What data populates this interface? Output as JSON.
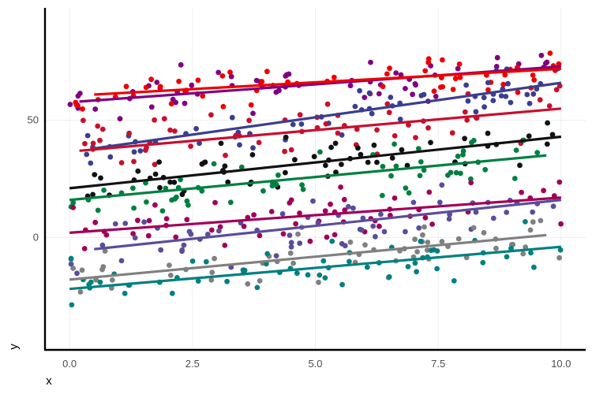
{
  "chart_data": {
    "type": "scatter",
    "title": "",
    "xlabel": "x",
    "ylabel": "y",
    "xlim": [
      -0.5,
      10.5
    ],
    "ylim": [
      -48,
      98
    ],
    "xticks": [
      0.0,
      2.5,
      5.0,
      7.5,
      10.0
    ],
    "xtick_labels": [
      "0.0",
      "2.5",
      "5.0",
      "7.5",
      "10.0"
    ],
    "yticks": [
      0,
      50
    ],
    "ytick_labels": [
      "0",
      "50"
    ],
    "grid": true,
    "legend": "none",
    "points_per_series": 60,
    "series": [
      {
        "color": "#800080",
        "trend": {
          "x": [
            0.2,
            10.0
          ],
          "y": [
            58,
            73
          ]
        },
        "point_y_range": [
          45,
          93
        ]
      },
      {
        "color": "#ee0000",
        "trend": {
          "x": [
            0.5,
            10.0
          ],
          "y": [
            61,
            72
          ]
        },
        "point_y_range": [
          48,
          87
        ]
      },
      {
        "color": "#3b3e8f",
        "trend": {
          "x": [
            0.5,
            10.0
          ],
          "y": [
            38,
            66
          ]
        },
        "point_y_range": [
          22,
          82
        ]
      },
      {
        "color": "#c8102e",
        "trend": {
          "x": [
            0.2,
            10.0
          ],
          "y": [
            37,
            55
          ]
        },
        "point_y_range": [
          22,
          72
        ]
      },
      {
        "color": "#111111",
        "trend": {
          "x": [
            0.0,
            10.0
          ],
          "y": [
            21,
            43
          ]
        },
        "point_y_range": [
          8,
          60
        ]
      },
      {
        "color": "#008040",
        "trend": {
          "x": [
            0.0,
            9.7
          ],
          "y": [
            16,
            35
          ]
        },
        "point_y_range": [
          2,
          50
        ]
      },
      {
        "color": "#a0005a",
        "trend": {
          "x": [
            0.0,
            10.0
          ],
          "y": [
            2,
            17
          ]
        },
        "point_y_range": [
          -14,
          32
        ]
      },
      {
        "color": "#5b4d9b",
        "trend": {
          "x": [
            0.5,
            10.0
          ],
          "y": [
            -5,
            16
          ]
        },
        "point_y_range": [
          -25,
          30
        ]
      },
      {
        "color": "#808080",
        "trend": {
          "x": [
            0.0,
            9.7
          ],
          "y": [
            -18,
            1
          ]
        },
        "point_y_range": [
          -36,
          15
        ]
      },
      {
        "color": "#008080",
        "trend": {
          "x": [
            0.0,
            10.0
          ],
          "y": [
            -22,
            -4
          ]
        },
        "point_y_range": [
          -42,
          10
        ]
      }
    ]
  }
}
